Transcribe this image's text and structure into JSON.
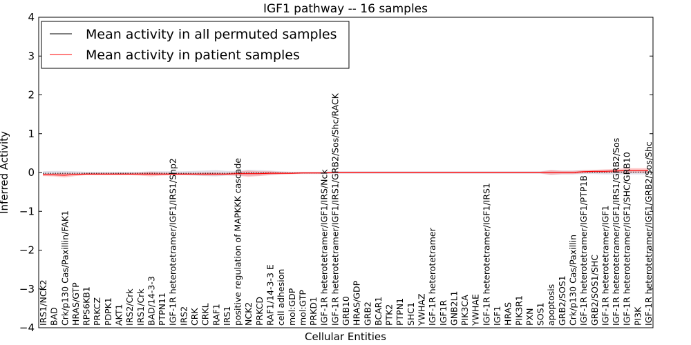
{
  "chart_data": {
    "type": "line",
    "title": "IGF1 pathway -- 16 samples",
    "xlabel": "Cellular Entities",
    "ylabel": "Inferred Activity",
    "ylim": [
      -4,
      4
    ],
    "yticks": [
      4,
      3,
      2,
      1,
      0,
      -1,
      -2,
      -3,
      -4
    ],
    "ytick_labels": [
      "4",
      "3",
      "2",
      "1",
      "0",
      "−1",
      "−2",
      "−3",
      "−4"
    ],
    "grid": false,
    "legend_position": "top-left",
    "categories": [
      "IRS1/NCK2",
      "BAD",
      "Crk/p130 Cas/Paxillin/FAK1",
      "HRAS/GTP",
      "RPS6KB1",
      "PRKCZ",
      "PDPK1",
      "AKT1",
      "IRS2/Crk",
      "IRS1/Crk",
      "BAD/14-3-3",
      "PTPN11",
      "IGF-1R heterotetramer/IGF1/IRS1/Shp2",
      "IRS2",
      "CRK",
      "CRKL",
      "RAF1",
      "IRS1",
      "positive regulation of MAPKKK cascade",
      "NCK2",
      "PRKCD",
      "RAF1/14-3-3 E",
      "cell adhesion",
      "mol:GDP",
      "mol:GTP",
      "PRKD1",
      "IGF-1R heterotetramer/IGF1/IRS/Nck",
      "IGF-1R heterotetramer/IGF1/IRS1/GRB2/Sos/Shc/RACK",
      "GRB10",
      "HRAS/GDP",
      "GRB2",
      "BCAR1",
      "PTK2",
      "PTPN1",
      "SHC1",
      "YWHAZ",
      "IGF-1R heterotetramer",
      "IGF1R",
      "GNB2L1",
      "PIK3CA",
      "YWHAE",
      "IGF-1R heterotetramer/IGF1/IRS1",
      "IGF1",
      "HRAS",
      "PIK3R1",
      "PXN",
      "SOS1",
      "apoptosis",
      "GRB2/SOS1",
      "Crk/p130 Cas/Paxillin",
      "IGF-1R heterotetramer/IGF1/PTP1B",
      "GRB2/SOS1/SHC",
      "IGF-1R heterotetramer/IGF1",
      "IGF-1R heterotetramer/IGF1/IRS1/GRB2/Sos",
      "IGF-1R heterotetramer/IGF1/SHC/GRB10",
      "PI3K",
      "IGF-1R heterotetramer/IGF1/GRB2/Sos/Shc"
    ],
    "series": [
      {
        "name": "Mean activity in all permuted samples",
        "color": "#000000",
        "values": [
          -0.02,
          -0.02,
          -0.02,
          -0.02,
          -0.02,
          -0.02,
          -0.02,
          -0.02,
          -0.02,
          -0.02,
          -0.02,
          -0.02,
          -0.02,
          -0.02,
          -0.02,
          -0.02,
          -0.02,
          -0.02,
          -0.02,
          -0.01,
          -0.01,
          -0.01,
          -0.01,
          -0.01,
          -0.01,
          -0.01,
          -0.01,
          0.0,
          0.0,
          0.0,
          0.0,
          0.0,
          0.0,
          0.0,
          0.0,
          0.0,
          0.0,
          0.0,
          0.0,
          0.0,
          0.0,
          0.0,
          0.0,
          0.0,
          0.0,
          0.0,
          0.0,
          0.0,
          0.0,
          0.0,
          0.01,
          0.01,
          0.01,
          0.01,
          0.01,
          0.01,
          0.01
        ]
      },
      {
        "name": "Mean activity in patient samples",
        "color": "#ff0000",
        "values": [
          -0.06,
          -0.06,
          -0.07,
          -0.05,
          -0.04,
          -0.04,
          -0.04,
          -0.04,
          -0.04,
          -0.04,
          -0.04,
          -0.04,
          -0.04,
          -0.04,
          -0.04,
          -0.04,
          -0.04,
          -0.04,
          -0.03,
          -0.03,
          -0.03,
          -0.02,
          -0.02,
          -0.02,
          -0.01,
          -0.01,
          -0.01,
          0.0,
          0.0,
          0.0,
          0.0,
          0.0,
          0.0,
          0.0,
          0.0,
          0.0,
          0.0,
          0.0,
          0.0,
          0.0,
          0.0,
          0.0,
          0.0,
          0.0,
          0.0,
          0.0,
          0.0,
          0.0,
          0.0,
          0.0,
          0.02,
          0.03,
          0.03,
          0.04,
          0.05,
          0.05,
          0.05
        ]
      }
    ],
    "patient_band_halfwidth": [
      0.03,
      0.04,
      0.06,
      0.04,
      0.03,
      0.03,
      0.03,
      0.03,
      0.03,
      0.04,
      0.06,
      0.04,
      0.03,
      0.03,
      0.03,
      0.04,
      0.04,
      0.03,
      0.05,
      0.08,
      0.06,
      0.05,
      0.03,
      0.02,
      0.02,
      0.02,
      0.02,
      0.02,
      0.02,
      0.02,
      0.02,
      0.02,
      0.02,
      0.02,
      0.02,
      0.02,
      0.02,
      0.02,
      0.02,
      0.02,
      0.02,
      0.02,
      0.02,
      0.02,
      0.02,
      0.02,
      0.02,
      0.06,
      0.04,
      0.04,
      0.04,
      0.04,
      0.05,
      0.05,
      0.06,
      0.06,
      0.06
    ],
    "permuted_band_halfwidth": [
      0.05,
      0.06,
      0.06,
      0.05,
      0.04,
      0.04,
      0.04,
      0.04,
      0.04,
      0.04,
      0.05,
      0.05,
      0.05,
      0.05,
      0.06,
      0.07,
      0.08,
      0.06,
      0.06,
      0.08,
      0.07,
      0.06,
      0.04,
      0.03,
      0.03,
      0.03,
      0.03,
      0.03,
      0.03,
      0.03,
      0.03,
      0.03,
      0.03,
      0.03,
      0.03,
      0.03,
      0.03,
      0.03,
      0.03,
      0.03,
      0.03,
      0.03,
      0.03,
      0.03,
      0.03,
      0.03,
      0.03,
      0.06,
      0.05,
      0.05,
      0.05,
      0.05,
      0.06,
      0.06,
      0.06,
      0.06,
      0.06
    ],
    "band_colors": {
      "patient": "#ff6666",
      "permuted": "#9999bb"
    }
  }
}
